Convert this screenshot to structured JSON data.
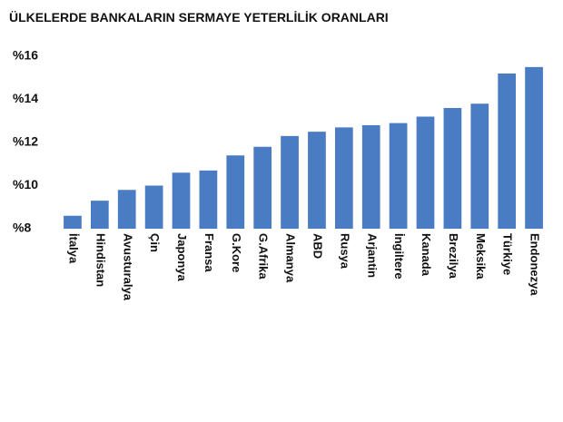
{
  "chart_data": {
    "type": "bar",
    "title": "ÜLKELERDE BANKALARIN SERMAYE YETERLİLİK ORANLARI",
    "categories": [
      "İtalya",
      "Hindistan",
      "Avusturalya",
      "Çin",
      "Japonya",
      "Fransa",
      "G.Kore",
      "G.Afrika",
      "Almanya",
      "ABD",
      "Rusya",
      "Arjantin",
      "İngiltere",
      "Kanada",
      "Brezilya",
      "Meksika",
      "Türkiye",
      "Endonezya"
    ],
    "values": [
      8.6,
      9.3,
      9.8,
      10.0,
      10.6,
      10.7,
      11.4,
      11.8,
      12.3,
      12.5,
      12.7,
      12.8,
      12.9,
      13.2,
      13.6,
      13.8,
      15.2,
      15.5
    ],
    "color": "#4a7cc4",
    "ylim": [
      8,
      16
    ],
    "yticks": [
      {
        "value": 8,
        "label": "%8"
      },
      {
        "value": 10,
        "label": "%10"
      },
      {
        "value": 12,
        "label": "%12"
      },
      {
        "value": 14,
        "label": "%14"
      },
      {
        "value": 16,
        "label": "%16"
      }
    ],
    "grid": false
  }
}
